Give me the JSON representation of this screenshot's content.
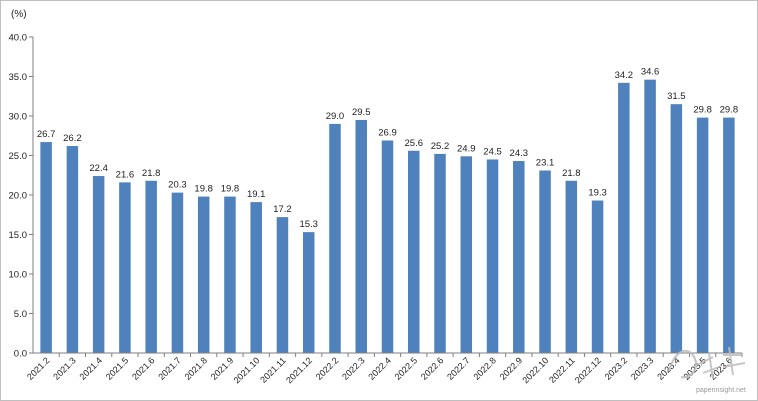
{
  "chart_data": {
    "type": "bar",
    "ylabel": "(%)",
    "ylim": [
      0,
      40
    ],
    "yticks": [
      "0.0",
      "5.0",
      "10.0",
      "15.0",
      "20.0",
      "25.0",
      "30.0",
      "35.0",
      "40.0"
    ],
    "grid": false,
    "legend": "none",
    "bar_color": "#4f81bd",
    "categories": [
      "2021.2",
      "2021.3",
      "2021.4",
      "2021.5",
      "2021.6",
      "2021.7",
      "2021.8",
      "2021.9",
      "2021.10",
      "2021.11",
      "2021.12",
      "2022.2",
      "2022.3",
      "2022.4",
      "2022.5",
      "2022.6",
      "2022.7",
      "2022.8",
      "2022.9",
      "2022.10",
      "2022.11",
      "2022.12",
      "2023.2",
      "2023.3",
      "2023.4",
      "2023.5",
      "2023.6"
    ],
    "values": [
      26.7,
      26.2,
      22.4,
      21.6,
      21.8,
      20.3,
      19.8,
      19.8,
      19.1,
      17.2,
      15.3,
      29.0,
      29.5,
      26.9,
      25.6,
      25.2,
      24.9,
      24.5,
      24.3,
      23.1,
      21.8,
      19.3,
      34.2,
      34.6,
      31.5,
      29.8,
      29.8
    ],
    "labels": [
      "26.7",
      "26.2",
      "22.4",
      "21.6",
      "21.8",
      "20.3",
      "19.8",
      "19.8",
      "19.1",
      "17.2",
      "15.3",
      "29.0",
      "29.5",
      "26.9",
      "25.6",
      "25.2",
      "24.9",
      "24.5",
      "24.3",
      "23.1",
      "21.8",
      "19.3",
      "34.2",
      "34.6",
      "31.5",
      "29.8",
      "29.8"
    ]
  },
  "watermark": {
    "url": "paperinsight.net"
  }
}
